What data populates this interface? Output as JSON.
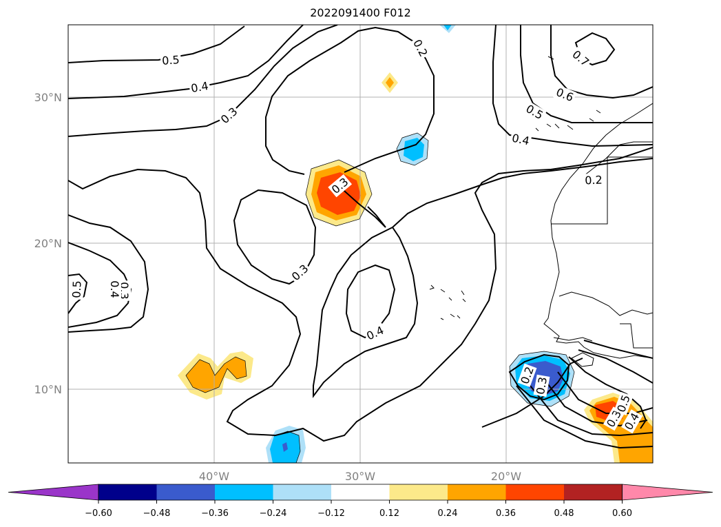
{
  "title": "2022091400 F012",
  "map": {
    "lon_labels": [
      "40°W",
      "30°W",
      "20°W"
    ],
    "lat_labels": [
      "30°N",
      "20°N",
      "10°N"
    ],
    "contour_labels": [
      "0.5",
      "0.4",
      "0.3",
      "0.2",
      "0.3",
      "0.3",
      "0.4",
      "0.2",
      "0.3",
      "0.4",
      "0.5",
      "0.3",
      "0.4",
      "0.5",
      "0.6",
      "0.7",
      "0.2",
      "0.3",
      "0.4",
      "0.5"
    ]
  },
  "colorbar": {
    "ticks": [
      "−0.60",
      "−0.48",
      "−0.36",
      "−0.24",
      "−0.12",
      "0.12",
      "0.24",
      "0.36",
      "0.48",
      "0.60"
    ],
    "colors": [
      "#9a35c9",
      "#00008b",
      "#3a5bcd",
      "#00bfff",
      "#aee0f8",
      "#ffffff",
      "#fce98a",
      "#ffa500",
      "#ff4500",
      "#b22222",
      "#ff88aa"
    ]
  }
}
